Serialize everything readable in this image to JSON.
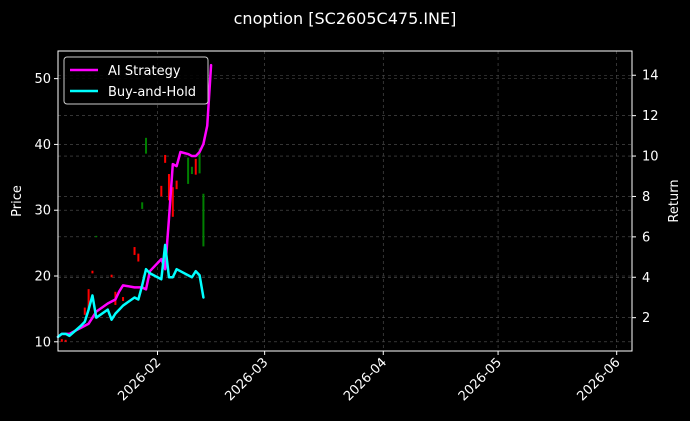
{
  "chart_data": {
    "type": "line",
    "title": "cnoption [SC2605C475.INE]",
    "ylabel": "Price",
    "y2label": "Return",
    "xlim": [
      "2026-01-06",
      "2026-06-05"
    ],
    "ylim": [
      8.6,
      54.2
    ],
    "y2lim": [
      0.35,
      15.2
    ],
    "x_ticks": [
      "2026-02",
      "2026-03",
      "2026-04",
      "2026-05",
      "2026-06"
    ],
    "y_ticks": [
      10,
      20,
      30,
      40,
      50
    ],
    "y2_ticks": [
      2,
      4,
      6,
      8,
      10,
      12,
      14
    ],
    "grid": true,
    "legend_position": "top-left",
    "colors": {
      "ai_strategy": "#ff00ff",
      "buy_and_hold": "#00ffff",
      "candle_up": "#008000",
      "candle_down": "#ff0000",
      "axes": "#ffffff",
      "grid": "#555555"
    },
    "series": [
      {
        "name": "AI Strategy",
        "axis": "right",
        "points": [
          [
            "2026-01-06",
            1.05
          ],
          [
            "2026-01-07",
            1.2
          ],
          [
            "2026-01-08",
            1.2
          ],
          [
            "2026-01-09",
            1.2
          ],
          [
            "2026-01-12",
            1.5
          ],
          [
            "2026-01-13",
            1.6
          ],
          [
            "2026-01-14",
            1.7
          ],
          [
            "2026-01-15",
            2.0
          ],
          [
            "2026-01-16",
            2.3
          ],
          [
            "2026-01-19",
            2.7
          ],
          [
            "2026-01-20",
            2.8
          ],
          [
            "2026-01-21",
            2.9
          ],
          [
            "2026-01-22",
            3.3
          ],
          [
            "2026-01-23",
            3.6
          ],
          [
            "2026-01-26",
            3.5
          ],
          [
            "2026-01-27",
            3.5
          ],
          [
            "2026-01-28",
            3.5
          ],
          [
            "2026-01-29",
            3.4
          ],
          [
            "2026-01-30",
            4.3
          ],
          [
            "2026-02-02",
            4.9
          ],
          [
            "2026-02-03",
            4.4
          ],
          [
            "2026-02-04",
            6.9
          ],
          [
            "2026-02-05",
            9.6
          ],
          [
            "2026-02-06",
            9.5
          ],
          [
            "2026-02-07",
            10.2
          ],
          [
            "2026-02-09",
            10.1
          ],
          [
            "2026-02-10",
            10.0
          ],
          [
            "2026-02-11",
            10.0
          ],
          [
            "2026-02-12",
            10.2
          ],
          [
            "2026-02-13",
            10.6
          ],
          [
            "2026-02-14",
            11.5
          ],
          [
            "2026-02-15",
            14.5
          ]
        ]
      },
      {
        "name": "Buy-and-Hold",
        "axis": "right",
        "points": [
          [
            "2026-01-06",
            1.05
          ],
          [
            "2026-01-07",
            1.2
          ],
          [
            "2026-01-08",
            1.2
          ],
          [
            "2026-01-09",
            1.1
          ],
          [
            "2026-01-12",
            1.6
          ],
          [
            "2026-01-13",
            1.8
          ],
          [
            "2026-01-14",
            2.4
          ],
          [
            "2026-01-15",
            3.1
          ],
          [
            "2026-01-16",
            2.0
          ],
          [
            "2026-01-19",
            2.4
          ],
          [
            "2026-01-20",
            1.9
          ],
          [
            "2026-01-21",
            2.2
          ],
          [
            "2026-01-22",
            2.4
          ],
          [
            "2026-01-23",
            2.6
          ],
          [
            "2026-01-26",
            3.0
          ],
          [
            "2026-01-27",
            2.9
          ],
          [
            "2026-01-28",
            3.6
          ],
          [
            "2026-01-29",
            4.4
          ],
          [
            "2026-01-30",
            4.2
          ],
          [
            "2026-02-02",
            3.9
          ],
          [
            "2026-02-03",
            5.6
          ],
          [
            "2026-02-04",
            4.0
          ],
          [
            "2026-02-05",
            4.0
          ],
          [
            "2026-02-06",
            4.4
          ],
          [
            "2026-02-09",
            4.1
          ],
          [
            "2026-02-10",
            4.0
          ],
          [
            "2026-02-11",
            4.3
          ],
          [
            "2026-02-12",
            4.1
          ],
          [
            "2026-02-13",
            3.0
          ]
        ]
      }
    ],
    "candles": [
      {
        "date": "2026-01-07",
        "open": 10.4,
        "close": 10.0,
        "up": false
      },
      {
        "date": "2026-01-08",
        "open": 10.3,
        "close": 10.0,
        "up": false
      },
      {
        "date": "2026-01-13",
        "open": 14.1,
        "close": 15.2,
        "up": false
      },
      {
        "date": "2026-01-14",
        "open": 15.0,
        "close": 18.0,
        "up": false
      },
      {
        "date": "2026-01-15",
        "open": 20.8,
        "close": 20.4,
        "up": false
      },
      {
        "date": "2026-01-16",
        "open": 26.1,
        "close": 25.9,
        "up": true
      },
      {
        "date": "2026-01-20",
        "open": 20.2,
        "close": 19.8,
        "up": false
      },
      {
        "date": "2026-01-21",
        "open": 17.6,
        "close": 15.6,
        "up": false
      },
      {
        "date": "2026-01-23",
        "open": 16.8,
        "close": 16.2,
        "up": false
      },
      {
        "date": "2026-01-26",
        "open": 24.4,
        "close": 23.2,
        "up": false
      },
      {
        "date": "2026-01-27",
        "open": 23.4,
        "close": 22.2,
        "up": false
      },
      {
        "date": "2026-01-28",
        "open": 31.2,
        "close": 30.2,
        "up": true
      },
      {
        "date": "2026-01-29",
        "open": 41.0,
        "close": 38.6,
        "up": true
      },
      {
        "date": "2026-02-02",
        "open": 33.7,
        "close": 32.1,
        "up": false
      },
      {
        "date": "2026-02-03",
        "open": 38.4,
        "close": 37.2,
        "up": false
      },
      {
        "date": "2026-02-04",
        "open": 35.5,
        "close": 31.5,
        "up": false
      },
      {
        "date": "2026-02-05",
        "open": 33.5,
        "close": 29.0,
        "up": false
      },
      {
        "date": "2026-02-06",
        "open": 34.5,
        "close": 33.2,
        "up": false
      },
      {
        "date": "2026-02-09",
        "open": 38.0,
        "close": 34.0,
        "up": true
      },
      {
        "date": "2026-02-10",
        "open": 36.6,
        "close": 35.5,
        "up": true
      },
      {
        "date": "2026-02-11",
        "open": 37.8,
        "close": 35.4,
        "up": false
      },
      {
        "date": "2026-02-12",
        "open": 39.4,
        "close": 35.6,
        "up": true
      },
      {
        "date": "2026-02-13",
        "open": 32.5,
        "close": 24.5,
        "up": true
      }
    ]
  }
}
